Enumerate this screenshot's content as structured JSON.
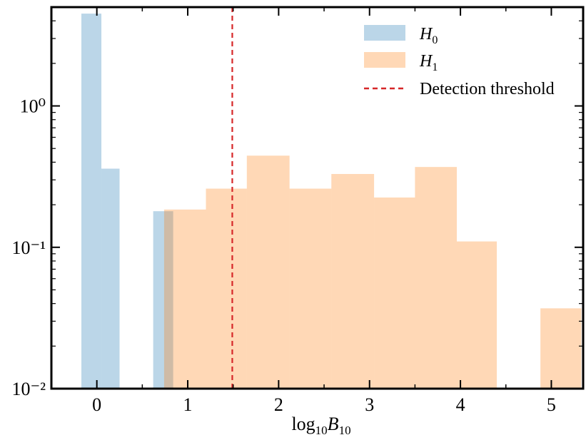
{
  "chart_data": {
    "type": "bar",
    "xlabel": "log10B10",
    "ylabel": "",
    "xlim": [
      -0.5,
      5.35
    ],
    "ylim": [
      0.01,
      5
    ],
    "yscale": "log",
    "grid": false,
    "legend_placement": "top-right",
    "x_ticks": [
      "0",
      "1",
      "2",
      "3",
      "4",
      "5"
    ],
    "y_ticks": [
      "10⁻²",
      "10⁻¹",
      "10⁰"
    ],
    "series": [
      {
        "name": "H0",
        "color": "#1f77b4",
        "opacity": 0.3,
        "bins": [
          {
            "x0": -0.17,
            "x1": 0.05,
            "value": 4.5
          },
          {
            "x0": 0.05,
            "x1": 0.25,
            "value": 0.36
          },
          {
            "x0": 0.62,
            "x1": 0.84,
            "value": 0.18
          }
        ]
      },
      {
        "name": "H1",
        "color": "#ff7f0e",
        "opacity": 0.3,
        "bins": [
          {
            "x0": 0.74,
            "x1": 1.2,
            "value": 0.185
          },
          {
            "x0": 1.2,
            "x1": 1.65,
            "value": 0.26
          },
          {
            "x0": 1.65,
            "x1": 2.12,
            "value": 0.445
          },
          {
            "x0": 2.12,
            "x1": 2.58,
            "value": 0.26
          },
          {
            "x0": 2.58,
            "x1": 3.05,
            "value": 0.33
          },
          {
            "x0": 3.05,
            "x1": 3.5,
            "value": 0.225
          },
          {
            "x0": 3.5,
            "x1": 3.96,
            "value": 0.37
          },
          {
            "x0": 3.96,
            "x1": 4.4,
            "value": 0.11
          },
          {
            "x0": 4.88,
            "x1": 5.33,
            "value": 0.037
          }
        ]
      }
    ],
    "threshold": {
      "name": "Detection threshold",
      "x": 1.49,
      "color": "#d62728",
      "style": "dashed"
    }
  },
  "legend": {
    "h0_main": "H",
    "h0_sub": "0",
    "h1_main": "H",
    "h1_sub": "1",
    "threshold_label": "Detection threshold"
  },
  "axis": {
    "x_main": "log",
    "x_sub": "10",
    "x_var": "B",
    "x_var_sub": "10"
  }
}
